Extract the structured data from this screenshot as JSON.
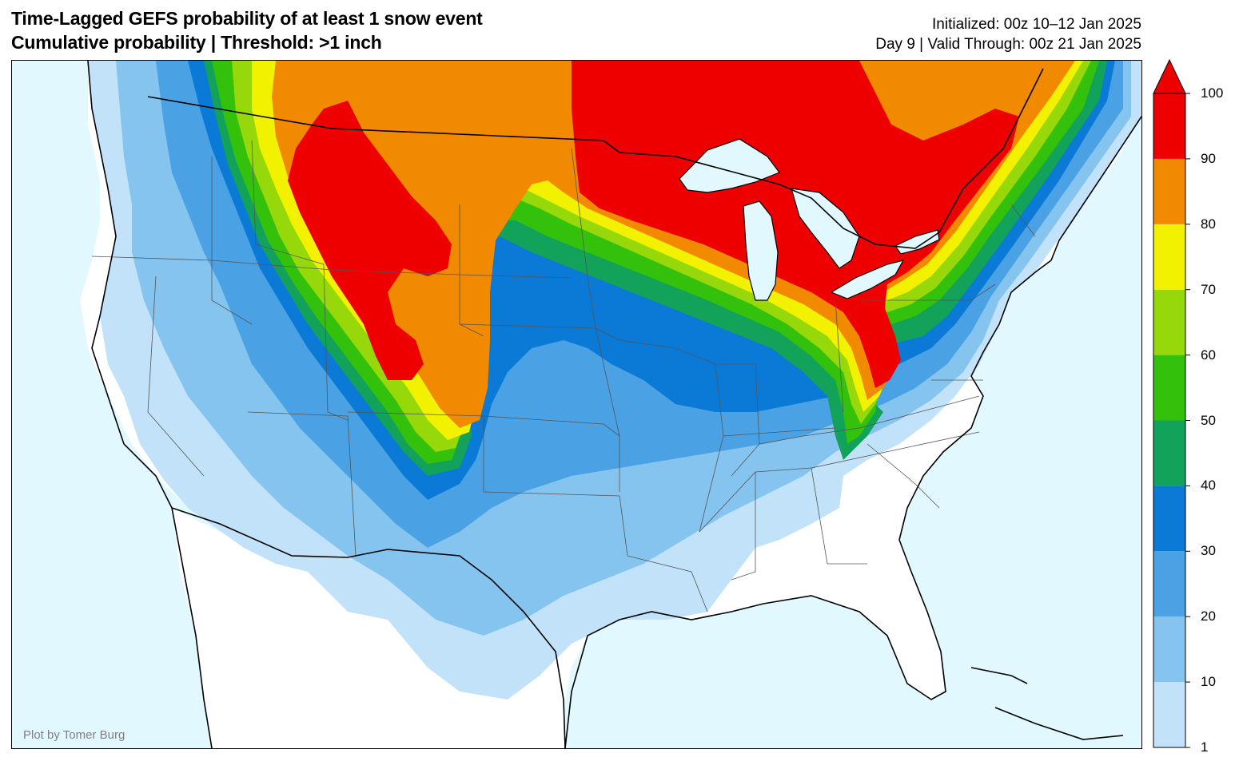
{
  "header": {
    "title_line1": "Time-Lagged GEFS probability of at least 1 snow event",
    "title_line2": "Cumulative probability | Threshold: >1 inch",
    "initialized": "Initialized: 00z 10–12 Jan 2025",
    "valid": "Day 9 | Valid Through: 00z 21 Jan 2025"
  },
  "credit": "Plot by Tomer Burg",
  "colorbar": {
    "ticks": [
      "1",
      "10",
      "20",
      "30",
      "40",
      "50",
      "60",
      "70",
      "80",
      "90",
      "100"
    ],
    "bins": [
      {
        "from": 1,
        "to": 10,
        "color": "#c1e2f9"
      },
      {
        "from": 10,
        "to": 20,
        "color": "#86c4f0"
      },
      {
        "from": 20,
        "to": 30,
        "color": "#4aa2e4"
      },
      {
        "from": 30,
        "to": 40,
        "color": "#0a7ad6"
      },
      {
        "from": 40,
        "to": 50,
        "color": "#12a25a"
      },
      {
        "from": 50,
        "to": 60,
        "color": "#34c10c"
      },
      {
        "from": 60,
        "to": 70,
        "color": "#96d80a"
      },
      {
        "from": 70,
        "to": 80,
        "color": "#f2f200"
      },
      {
        "from": 80,
        "to": 90,
        "color": "#f28a00"
      },
      {
        "from": 90,
        "to": 100,
        "color": "#ee0000"
      }
    ],
    "extend": "max"
  },
  "colors": {
    "ocean": "#e0f8fe",
    "land": "#ffffff"
  }
}
